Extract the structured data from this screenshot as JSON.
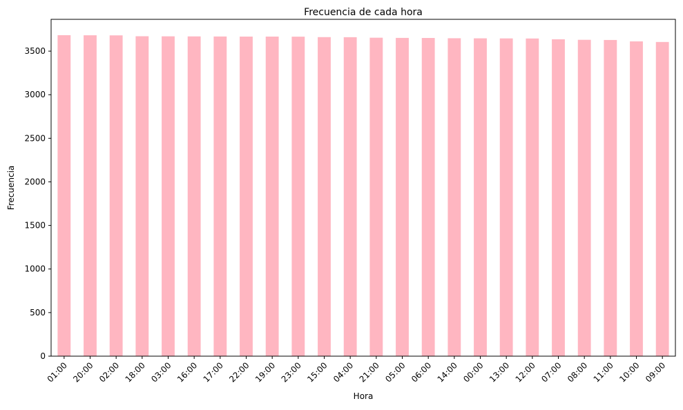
{
  "chart_data": {
    "type": "bar",
    "title": "Frecuencia de cada hora",
    "xlabel": "Hora",
    "ylabel": "Frecuencia",
    "categories": [
      "01:00",
      "20:00",
      "02:00",
      "18:00",
      "03:00",
      "16:00",
      "17:00",
      "22:00",
      "19:00",
      "23:00",
      "15:00",
      "04:00",
      "21:00",
      "05:00",
      "06:00",
      "14:00",
      "00:00",
      "13:00",
      "12:00",
      "07:00",
      "08:00",
      "11:00",
      "10:00",
      "09:00"
    ],
    "values": [
      3683,
      3682,
      3681,
      3671,
      3670,
      3669,
      3668,
      3667,
      3667,
      3666,
      3661,
      3660,
      3654,
      3652,
      3651,
      3648,
      3647,
      3646,
      3645,
      3636,
      3630,
      3628,
      3612,
      3605
    ],
    "ylim": [
      0,
      3865
    ],
    "yticks": [
      0,
      500,
      1000,
      1500,
      2000,
      2500,
      3000,
      3500
    ],
    "grid": false,
    "legend": "none",
    "bar_color": "#ffb6c1"
  }
}
